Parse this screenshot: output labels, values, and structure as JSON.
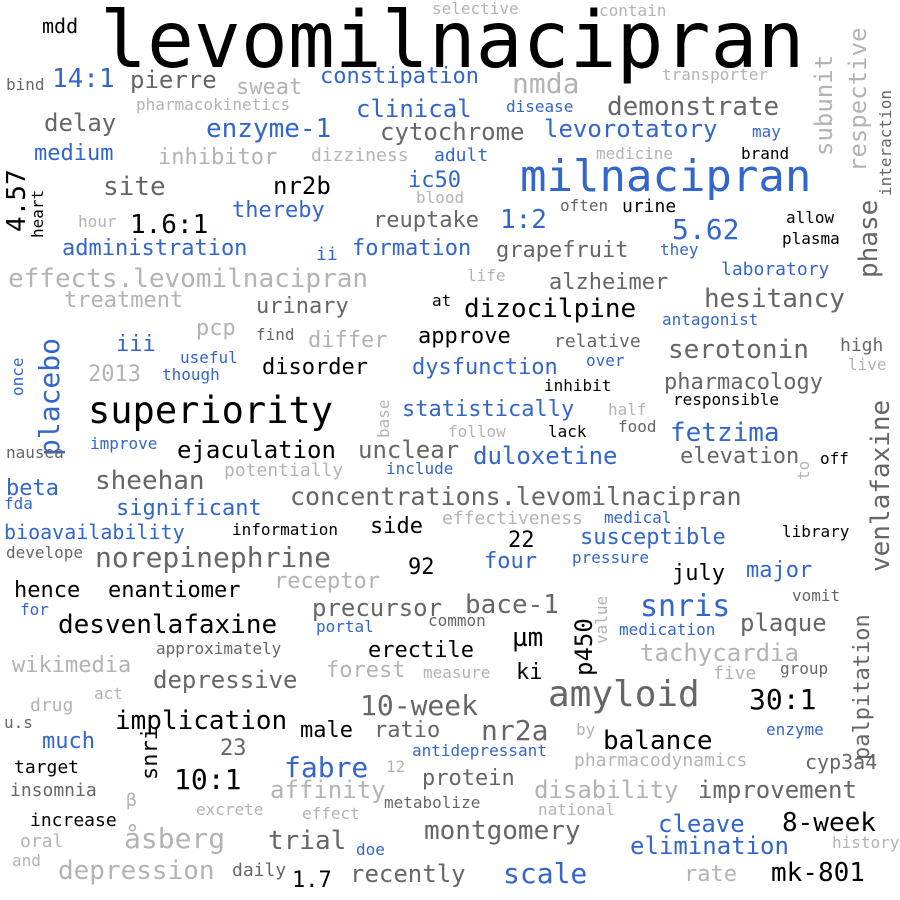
{
  "colors": {
    "black": "#000000",
    "dark": "#666666",
    "light": "#b3b3b3",
    "blue": "#3366cc"
  },
  "words": [
    {
      "text": "levomilnacipran",
      "color": "black"
    },
    {
      "text": "milnacipran",
      "color": "blue"
    },
    {
      "text": "superiority",
      "color": "black"
    },
    {
      "text": "concentrations.levomilnacipran",
      "color": "dark"
    },
    {
      "text": "effects.levomilnacipran",
      "color": "light"
    },
    {
      "text": "norepinephrine",
      "color": "dark"
    },
    {
      "text": "amyloid",
      "color": "dark"
    },
    {
      "text": "desvenlafaxine",
      "color": "black"
    },
    {
      "text": "placebo",
      "color": "blue"
    },
    {
      "text": "venlafaxine",
      "color": "dark"
    },
    {
      "text": "snris",
      "color": "blue"
    },
    {
      "text": "hesitancy",
      "color": "dark"
    },
    {
      "text": "serotonin",
      "color": "dark"
    },
    {
      "text": "demonstrate",
      "color": "dark"
    },
    {
      "text": "montgomery",
      "color": "dark"
    },
    {
      "text": "10-week",
      "color": "dark"
    },
    {
      "text": "nmda",
      "color": "light"
    },
    {
      "text": "fetzima",
      "color": "blue"
    },
    {
      "text": "balance",
      "color": "black"
    },
    {
      "text": "8-week",
      "color": "black"
    },
    {
      "text": "scale",
      "color": "blue"
    },
    {
      "text": "30:1",
      "color": "black"
    },
    {
      "text": "nr2a",
      "color": "dark"
    },
    {
      "text": "palpitation",
      "color": "dark"
    },
    {
      "text": "phase",
      "color": "dark"
    },
    {
      "text": "respective",
      "color": "light"
    },
    {
      "text": "subunit",
      "color": "light"
    },
    {
      "text": "14:1",
      "color": "blue"
    },
    {
      "text": "4.57",
      "color": "black"
    },
    {
      "text": "site",
      "color": "dark"
    },
    {
      "text": "nr2b",
      "color": "black"
    },
    {
      "text": "dizocilpine",
      "color": "black"
    },
    {
      "text": "sheehan",
      "color": "dark"
    },
    {
      "text": "ejaculation",
      "color": "black"
    },
    {
      "text": "fabre",
      "color": "blue"
    },
    {
      "text": "implication",
      "color": "black"
    },
    {
      "text": "åsberg",
      "color": "light"
    },
    {
      "text": "depression",
      "color": "light"
    },
    {
      "text": "duloxetine",
      "color": "blue"
    },
    {
      "text": "enzyme-1",
      "color": "blue"
    },
    {
      "text": "levorotatory",
      "color": "blue"
    },
    {
      "text": "cytochrome",
      "color": "dark"
    },
    {
      "text": "5.62",
      "color": "blue"
    },
    {
      "text": "1:2",
      "color": "blue"
    },
    {
      "text": "1.6:1",
      "color": "black"
    },
    {
      "text": "10:1",
      "color": "black"
    },
    {
      "text": "mk-801",
      "color": "black"
    },
    {
      "text": "µm",
      "color": "black"
    },
    {
      "text": "p450",
      "color": "black"
    },
    {
      "text": "bace-1",
      "color": "dark"
    },
    {
      "text": "plaque",
      "color": "dark"
    },
    {
      "text": "tachycardia",
      "color": "light"
    },
    {
      "text": "depressive",
      "color": "dark"
    },
    {
      "text": "precursor",
      "color": "dark"
    },
    {
      "text": "disability",
      "color": "light"
    },
    {
      "text": "improvement",
      "color": "dark"
    },
    {
      "text": "trial",
      "color": "dark"
    },
    {
      "text": "cleave",
      "color": "blue"
    },
    {
      "text": "elimination",
      "color": "blue"
    },
    {
      "text": "recently",
      "color": "dark"
    },
    {
      "text": "affinity",
      "color": "light"
    },
    {
      "text": "protein",
      "color": "dark"
    },
    {
      "text": "snri",
      "color": "black"
    },
    {
      "text": "elevation",
      "color": "dark"
    },
    {
      "text": "unclear",
      "color": "dark"
    },
    {
      "text": "significant",
      "color": "blue"
    },
    {
      "text": "susceptible",
      "color": "blue"
    },
    {
      "text": "statistically",
      "color": "blue"
    },
    {
      "text": "dysfunction",
      "color": "blue"
    },
    {
      "text": "approve",
      "color": "black"
    },
    {
      "text": "pharmacology",
      "color": "dark"
    },
    {
      "text": "grapefruit",
      "color": "dark"
    },
    {
      "text": "alzheimer",
      "color": "dark"
    },
    {
      "text": "urinary",
      "color": "dark"
    },
    {
      "text": "administration",
      "color": "blue"
    },
    {
      "text": "formation",
      "color": "blue"
    },
    {
      "text": "reuptake",
      "color": "dark"
    },
    {
      "text": "constipation",
      "color": "blue"
    },
    {
      "text": "clinical",
      "color": "blue"
    },
    {
      "text": "delay",
      "color": "dark"
    },
    {
      "text": "pierre",
      "color": "dark"
    },
    {
      "text": "inhibitor",
      "color": "light"
    },
    {
      "text": "treatment",
      "color": "light"
    },
    {
      "text": "disorder",
      "color": "black"
    },
    {
      "text": "enantiomer",
      "color": "black"
    },
    {
      "text": "hence",
      "color": "black"
    },
    {
      "text": "bioavailability",
      "color": "blue"
    },
    {
      "text": "beta",
      "color": "blue"
    },
    {
      "text": "medium",
      "color": "blue"
    },
    {
      "text": "sweat",
      "color": "light"
    },
    {
      "text": "thereby",
      "color": "blue"
    },
    {
      "text": "ic50",
      "color": "blue"
    },
    {
      "text": "pcp",
      "color": "light"
    },
    {
      "text": "iii",
      "color": "blue"
    },
    {
      "text": "2013",
      "color": "light"
    },
    {
      "text": "differ",
      "color": "light"
    },
    {
      "text": "receptor",
      "color": "light"
    },
    {
      "text": "forest",
      "color": "light"
    },
    {
      "text": "wikimedia",
      "color": "light"
    },
    {
      "text": "major",
      "color": "blue"
    },
    {
      "text": "july",
      "color": "black"
    },
    {
      "text": "four",
      "color": "blue"
    },
    {
      "text": "92",
      "color": "black"
    },
    {
      "text": "22",
      "color": "black"
    },
    {
      "text": "23",
      "color": "dark"
    },
    {
      "text": "much",
      "color": "blue"
    },
    {
      "text": "male",
      "color": "black"
    },
    {
      "text": "ratio",
      "color": "dark"
    },
    {
      "text": "erectile",
      "color": "black"
    },
    {
      "text": "ki",
      "color": "black"
    },
    {
      "text": "cyp3a4",
      "color": "dark"
    },
    {
      "text": "side",
      "color": "black"
    },
    {
      "text": "mdd",
      "color": "black"
    },
    {
      "text": "selective",
      "color": "light"
    },
    {
      "text": "contain",
      "color": "light"
    },
    {
      "text": "bind",
      "color": "dark"
    },
    {
      "text": "pharmacokinetics",
      "color": "light"
    },
    {
      "text": "transporter",
      "color": "light"
    },
    {
      "text": "interaction",
      "color": "dark"
    },
    {
      "text": "disease",
      "color": "blue"
    },
    {
      "text": "may",
      "color": "blue"
    },
    {
      "text": "dizziness",
      "color": "light"
    },
    {
      "text": "adult",
      "color": "blue"
    },
    {
      "text": "medicine",
      "color": "light"
    },
    {
      "text": "brand",
      "color": "black"
    },
    {
      "text": "heart",
      "color": "black"
    },
    {
      "text": "hour",
      "color": "light"
    },
    {
      "text": "blood",
      "color": "light"
    },
    {
      "text": "often",
      "color": "dark"
    },
    {
      "text": "urine",
      "color": "black"
    },
    {
      "text": "allow",
      "color": "black"
    },
    {
      "text": "plasma",
      "color": "black"
    },
    {
      "text": "ii",
      "color": "blue"
    },
    {
      "text": "they",
      "color": "blue"
    },
    {
      "text": "life",
      "color": "light"
    },
    {
      "text": "laboratory",
      "color": "blue"
    },
    {
      "text": "at",
      "color": "black"
    },
    {
      "text": "antagonist",
      "color": "blue"
    },
    {
      "text": "find",
      "color": "dark"
    },
    {
      "text": "relative",
      "color": "dark"
    },
    {
      "text": "useful",
      "color": "blue"
    },
    {
      "text": "over",
      "color": "blue"
    },
    {
      "text": "high",
      "color": "dark"
    },
    {
      "text": "live",
      "color": "light"
    },
    {
      "text": "once",
      "color": "blue"
    },
    {
      "text": "though",
      "color": "blue"
    },
    {
      "text": "inhibit",
      "color": "black"
    },
    {
      "text": "responsible",
      "color": "black"
    },
    {
      "text": "half",
      "color": "light"
    },
    {
      "text": "base",
      "color": "light"
    },
    {
      "text": "follow",
      "color": "light"
    },
    {
      "text": "lack",
      "color": "black"
    },
    {
      "text": "food",
      "color": "dark"
    },
    {
      "text": "improve",
      "color": "blue"
    },
    {
      "text": "nausea",
      "color": "dark"
    },
    {
      "text": "potentially",
      "color": "light"
    },
    {
      "text": "include",
      "color": "blue"
    },
    {
      "text": "off",
      "color": "black"
    },
    {
      "text": "to",
      "color": "light"
    },
    {
      "text": "fda",
      "color": "blue"
    },
    {
      "text": "effectiveness",
      "color": "light"
    },
    {
      "text": "medical",
      "color": "blue"
    },
    {
      "text": "information",
      "color": "black"
    },
    {
      "text": "library",
      "color": "black"
    },
    {
      "text": "develope",
      "color": "dark"
    },
    {
      "text": "pressure",
      "color": "blue"
    },
    {
      "text": "for",
      "color": "blue"
    },
    {
      "text": "vomit",
      "color": "dark"
    },
    {
      "text": "portal",
      "color": "blue"
    },
    {
      "text": "common",
      "color": "dark"
    },
    {
      "text": "value",
      "color": "light"
    },
    {
      "text": "medication",
      "color": "blue"
    },
    {
      "text": "approximately",
      "color": "dark"
    },
    {
      "text": "measure",
      "color": "light"
    },
    {
      "text": "five",
      "color": "light"
    },
    {
      "text": "group",
      "color": "dark"
    },
    {
      "text": "drug",
      "color": "light"
    },
    {
      "text": "act",
      "color": "light"
    },
    {
      "text": "u.s",
      "color": "dark"
    },
    {
      "text": "by",
      "color": "light"
    },
    {
      "text": "enzyme",
      "color": "blue"
    },
    {
      "text": "antidepressant",
      "color": "blue"
    },
    {
      "text": "target",
      "color": "black"
    },
    {
      "text": "pharmacodynamics",
      "color": "light"
    },
    {
      "text": "12",
      "color": "light"
    },
    {
      "text": "insomnia",
      "color": "dark"
    },
    {
      "text": "β",
      "color": "light"
    },
    {
      "text": "excrete",
      "color": "light"
    },
    {
      "text": "effect",
      "color": "light"
    },
    {
      "text": "metabolize",
      "color": "dark"
    },
    {
      "text": "national",
      "color": "light"
    },
    {
      "text": "increase",
      "color": "black"
    },
    {
      "text": "oral",
      "color": "light"
    },
    {
      "text": "doe",
      "color": "blue"
    },
    {
      "text": "history",
      "color": "light"
    },
    {
      "text": "and",
      "color": "light"
    },
    {
      "text": "daily",
      "color": "dark"
    },
    {
      "text": "1.7",
      "color": "black"
    },
    {
      "text": "rate",
      "color": "light"
    }
  ]
}
